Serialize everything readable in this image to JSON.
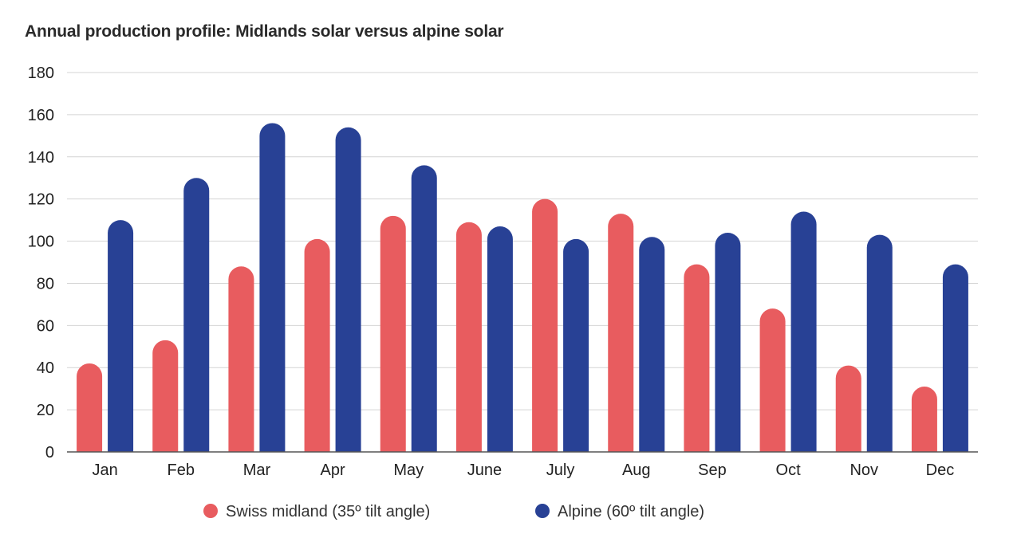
{
  "chart_data": {
    "type": "bar",
    "title": "Annual production profile: Midlands solar versus alpine solar",
    "xlabel": "",
    "ylabel": "",
    "categories": [
      "Jan",
      "Feb",
      "Mar",
      "Apr",
      "May",
      "June",
      "July",
      "Aug",
      "Sep",
      "Oct",
      "Nov",
      "Dec"
    ],
    "series": [
      {
        "name": "Swiss midland (35º tilt angle)",
        "color": "#e85c5f",
        "values": [
          42,
          53,
          88,
          101,
          112,
          109,
          120,
          113,
          89,
          68,
          41,
          31
        ]
      },
      {
        "name": "Alpine (60º tilt angle)",
        "color": "#284195",
        "values": [
          110,
          130,
          156,
          154,
          136,
          107,
          101,
          102,
          104,
          114,
          103,
          89
        ]
      }
    ],
    "ylim": [
      0,
      180
    ],
    "yticks": [
      0,
      20,
      40,
      60,
      80,
      100,
      120,
      140,
      160,
      180
    ],
    "grid": true,
    "legend_position": "bottom-center"
  }
}
